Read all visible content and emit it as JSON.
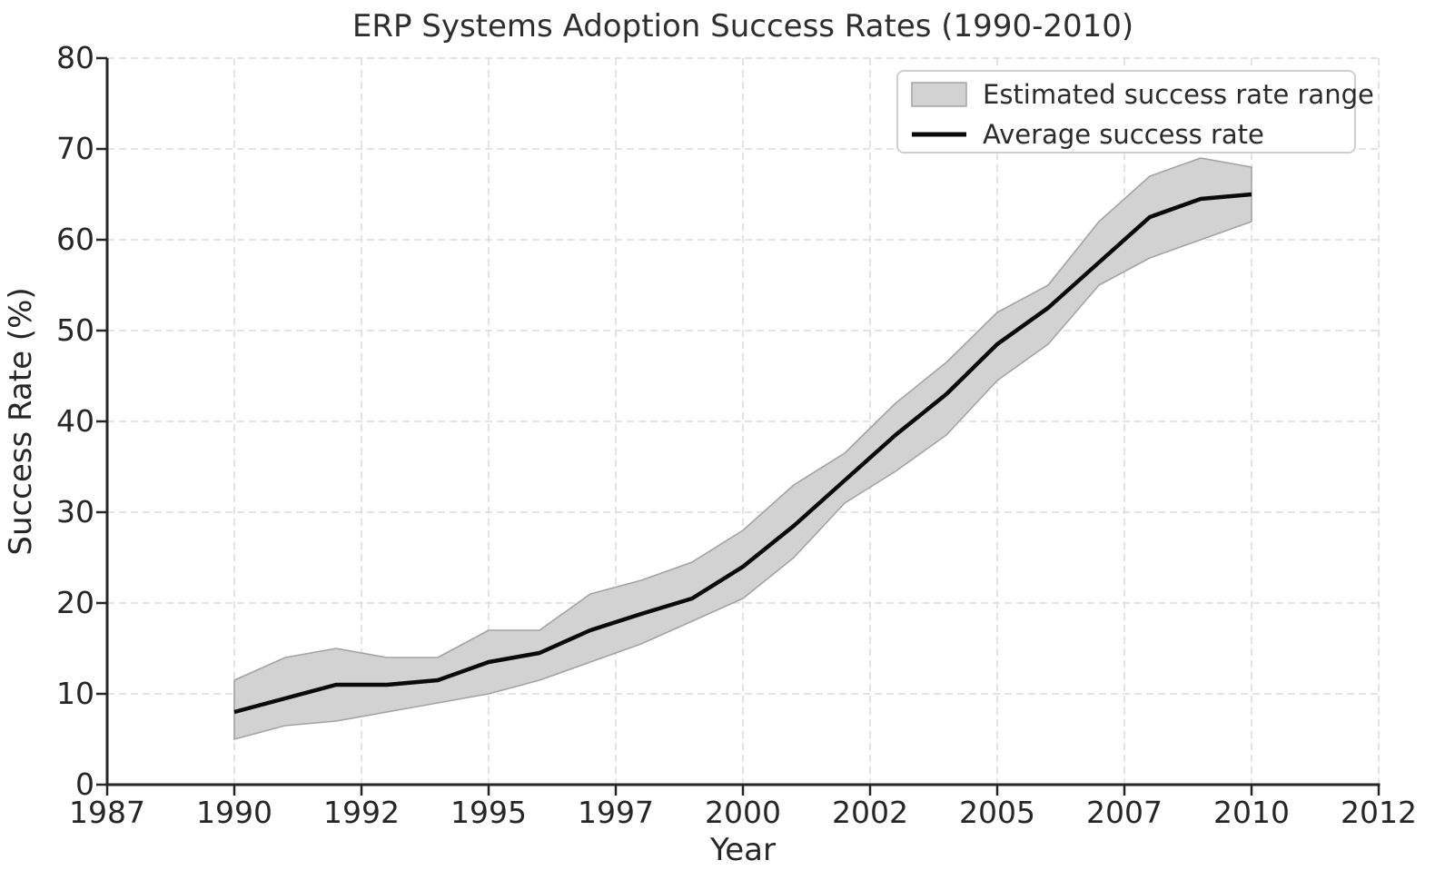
{
  "chart_data": {
    "type": "line",
    "title": "ERP Systems Adoption Success Rates (1990-2010)",
    "xlabel": "Year",
    "ylabel": "Success Rate (%)",
    "xlim": [
      1987.5,
      2012.5
    ],
    "ylim": [
      0,
      80
    ],
    "grid": {
      "visible": true,
      "style": "dashed",
      "which": "both"
    },
    "x_ticks": {
      "values": [
        1987.5,
        1990,
        1992.5,
        1995,
        1997.5,
        2000,
        2002.5,
        2005,
        2007.5,
        2010,
        2012.5
      ],
      "labels": [
        "1987",
        "1990",
        "1992",
        "1995",
        "1997",
        "2000",
        "2002",
        "2005",
        "2007",
        "2010",
        "2012"
      ]
    },
    "y_ticks": {
      "values": [
        0,
        10,
        20,
        30,
        40,
        50,
        60,
        70,
        80
      ],
      "labels": [
        "0",
        "10",
        "20",
        "30",
        "40",
        "50",
        "60",
        "70",
        "80"
      ]
    },
    "x": [
      1990,
      1991,
      1992,
      1993,
      1994,
      1995,
      1996,
      1997,
      1998,
      1999,
      2000,
      2001,
      2002,
      2003,
      2004,
      2005,
      2006,
      2007,
      2008,
      2009,
      2010
    ],
    "series": [
      {
        "name": "Average success rate",
        "type": "line",
        "values": [
          8,
          9.5,
          11,
          11,
          11.5,
          13.5,
          14.5,
          17,
          18.8,
          20.5,
          24,
          28.5,
          33.5,
          38.5,
          43,
          48.5,
          52.5,
          57.5,
          62.5,
          64.5,
          65
        ]
      }
    ],
    "band": {
      "name": "Estimated success rate range",
      "lower": [
        5,
        6.5,
        7,
        8,
        9,
        10,
        11.5,
        13.5,
        15.5,
        18,
        20.5,
        25,
        31,
        34.5,
        38.5,
        44.5,
        48.5,
        55,
        58,
        60,
        62
      ],
      "upper": [
        11.5,
        14,
        15,
        14,
        14,
        17,
        17,
        21,
        22.5,
        24.5,
        28,
        33,
        36.5,
        42,
        46.5,
        52,
        55,
        62,
        67,
        69,
        68
      ]
    },
    "legend": {
      "position": "upper right",
      "entries": [
        {
          "label": "Estimated success rate range",
          "swatch": "band"
        },
        {
          "label": "Average success rate",
          "swatch": "line"
        }
      ]
    },
    "colors": {
      "line": "#0a0a0a",
      "band_fill": "#d2d2d2",
      "band_edge": "#a3a3a3",
      "grid": "#dcdcdc",
      "spine": "#262626",
      "text": "#262626",
      "legend_border": "#cfcfcf",
      "legend_bg": "#ffffff",
      "background": "#ffffff"
    }
  }
}
